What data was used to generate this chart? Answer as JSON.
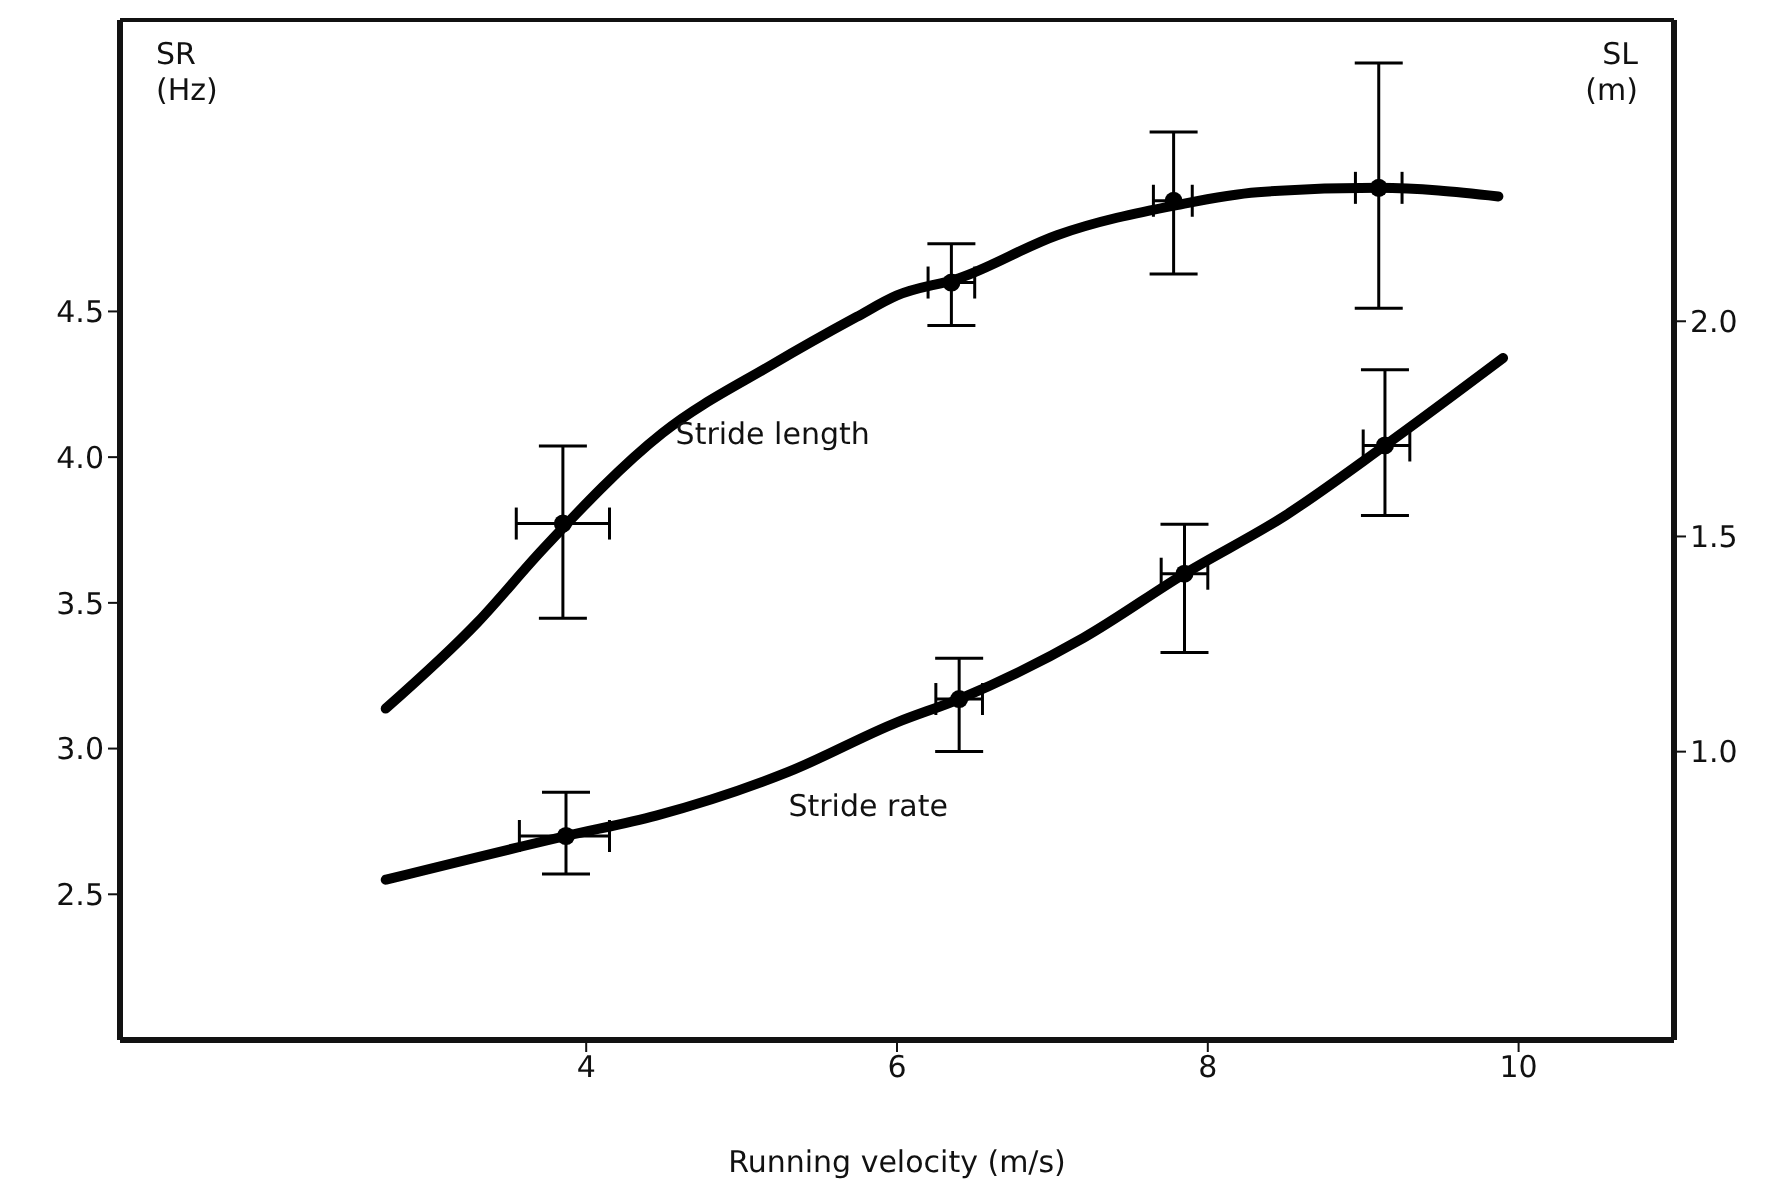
{
  "chart_data": {
    "type": "line",
    "xlabel": "Running velocity (m/s)",
    "ylabel": "SR (Hz)",
    "y2label": "SL (m)",
    "xlim": [
      1,
      11
    ],
    "xticks": [
      4,
      6,
      8,
      10
    ],
    "ylim": [
      2,
      5.5
    ],
    "yticks": [
      2.5,
      {
        "value": 3,
        "label": "3.0"
      },
      3.5,
      {
        "value": 4,
        "label": "4.0"
      },
      4.5
    ],
    "y2lim": [
      0.33,
      2.7
    ],
    "y2ticks": [
      {
        "value": 1,
        "label": "1.0"
      },
      1.5,
      {
        "value": 2,
        "label": "2.0"
      }
    ],
    "series": [
      {
        "name": "Stride length",
        "axis": "y2",
        "color": "#000000",
        "x": [
          2.71,
          3.3,
          3.72,
          4.49,
          5.2,
          5.74,
          6.0,
          6.4,
          7.03,
          7.8,
          8.32,
          9.1,
          9.87
        ],
        "values": [
          1.1,
          1.3,
          1.47,
          1.74,
          1.9,
          2.01,
          2.06,
          2.1,
          2.2,
          2.27,
          2.3,
          2.31,
          2.29
        ]
      },
      {
        "type": "scatter",
        "axis": "y2",
        "color": "#000000",
        "marker": "circle",
        "x": [
          3.85,
          6.35,
          7.78,
          9.1
        ],
        "values": [
          1.53,
          2.09,
          2.28,
          2.31
        ],
        "errors": [
          [
            1.31,
            1.71
          ],
          [
            1.99,
            2.18
          ],
          [
            2.11,
            2.44
          ],
          [
            2.03,
            2.6
          ]
        ],
        "xerrors": [
          [
            3.55,
            4.15
          ],
          [
            6.2,
            6.5
          ],
          [
            7.65,
            7.9
          ],
          [
            8.95,
            9.25
          ]
        ]
      },
      {
        "name": "Stride rate",
        "axis": "y",
        "color": "#000000",
        "x": [
          2.71,
          3.87,
          4.45,
          5.3,
          6.0,
          6.4,
          7.2,
          7.85,
          8.5,
          9.14,
          9.9
        ],
        "values": [
          2.55,
          2.7,
          2.77,
          2.92,
          3.09,
          3.17,
          3.38,
          3.6,
          3.8,
          4.04,
          4.34
        ]
      },
      {
        "type": "scatter",
        "axis": "y",
        "color": "#000000",
        "marker": "circle",
        "x": [
          3.87,
          6.4,
          7.85,
          9.14
        ],
        "values": [
          2.7,
          3.17,
          3.6,
          4.04
        ],
        "errors": [
          [
            2.57,
            2.85
          ],
          [
            2.99,
            3.31
          ],
          [
            3.33,
            3.77
          ],
          [
            3.8,
            4.3
          ]
        ],
        "xerrors": [
          [
            3.57,
            4.15
          ],
          [
            6.25,
            6.55
          ],
          [
            7.7,
            8.0
          ],
          [
            9.0,
            9.3
          ]
        ]
      }
    ]
  }
}
